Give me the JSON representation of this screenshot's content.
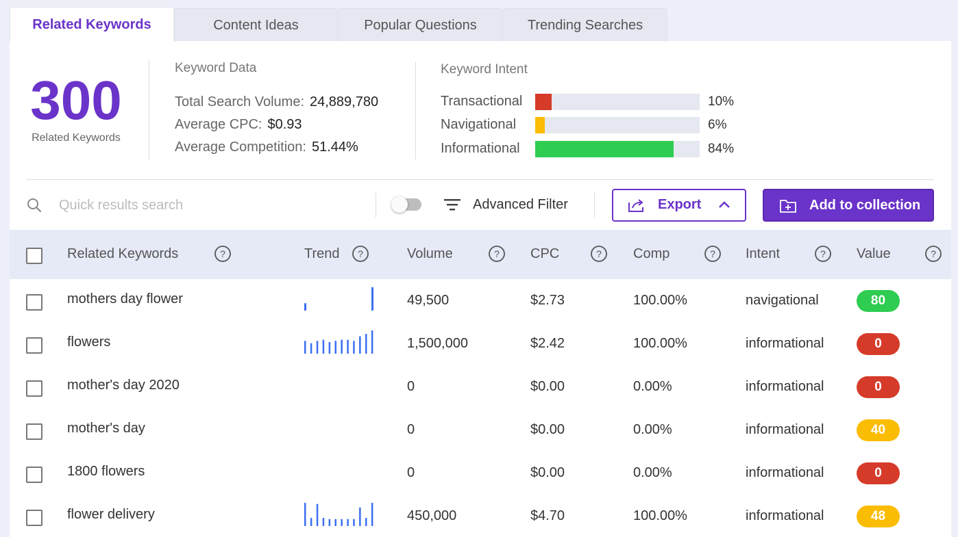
{
  "tabs": [
    "Related Keywords",
    "Content Ideas",
    "Popular Questions",
    "Trending Searches"
  ],
  "summary": {
    "count": "300",
    "count_label": "Related Keywords",
    "keyword_data": {
      "title": "Keyword Data",
      "total_search_volume_label": "Total Search Volume:",
      "total_search_volume": "24,889,780",
      "avg_cpc_label": "Average CPC:",
      "avg_cpc": "$0.93",
      "avg_comp_label": "Average Competition:",
      "avg_comp": "51.44%"
    },
    "keyword_intent": {
      "title": "Keyword Intent",
      "items": [
        {
          "label": "Transactional",
          "pct": "10%",
          "value": 0.1,
          "color": "#d63b2a"
        },
        {
          "label": "Navigational",
          "pct": "6%",
          "value": 0.06,
          "color": "#fbbc04"
        },
        {
          "label": "Informational",
          "pct": "84%",
          "value": 0.84,
          "color": "#2ecc51"
        }
      ]
    }
  },
  "toolbar": {
    "search_placeholder": "Quick results search",
    "filter_label": "Advanced Filter",
    "export_label": "Export",
    "add_label": "Add to collection"
  },
  "colors": {
    "accent": "#6a33c9",
    "trend": "#3b6ff0",
    "badge_green": "#2ecc51",
    "badge_red": "#d63b2a",
    "badge_yellow": "#fbbc04"
  },
  "table": {
    "columns": [
      "Related Keywords",
      "Trend",
      "Volume",
      "CPC",
      "Comp",
      "Intent",
      "Value"
    ],
    "rows": [
      {
        "keyword": "mothers day flower",
        "trend": [
          0,
          0,
          0,
          0,
          0,
          0,
          0,
          0,
          0,
          0,
          0,
          0
        ],
        "trend_sparse": true,
        "volume": "49,500",
        "cpc": "$2.73",
        "comp": "100.00%",
        "intent": "navigational",
        "value": "80",
        "value_color": "#2ecc51"
      },
      {
        "keyword": "flowers",
        "trend": [
          0.55,
          0.45,
          0.55,
          0.6,
          0.5,
          0.55,
          0.6,
          0.6,
          0.55,
          0.75,
          0.85,
          1.0
        ],
        "volume": "1,500,000",
        "cpc": "$2.42",
        "comp": "100.00%",
        "intent": "informational",
        "value": "0",
        "value_color": "#d63b2a"
      },
      {
        "keyword": "mother's day 2020",
        "trend": [],
        "volume": "0",
        "cpc": "$0.00",
        "comp": "0.00%",
        "intent": "informational",
        "value": "0",
        "value_color": "#d63b2a"
      },
      {
        "keyword": "mother's day",
        "trend": [],
        "volume": "0",
        "cpc": "$0.00",
        "comp": "0.00%",
        "intent": "informational",
        "value": "40",
        "value_color": "#fbbc04"
      },
      {
        "keyword": "1800 flowers",
        "trend": [],
        "volume": "0",
        "cpc": "$0.00",
        "comp": "0.00%",
        "intent": "informational",
        "value": "0",
        "value_color": "#d63b2a"
      },
      {
        "keyword": "flower delivery",
        "trend": [
          1.0,
          0.35,
          0.95,
          0.35,
          0.3,
          0.3,
          0.3,
          0.3,
          0.3,
          0.8,
          0.35,
          1.0
        ],
        "volume": "450,000",
        "cpc": "$4.70",
        "comp": "100.00%",
        "intent": "informational",
        "value": "48",
        "value_color": "#fbbc04"
      }
    ]
  }
}
